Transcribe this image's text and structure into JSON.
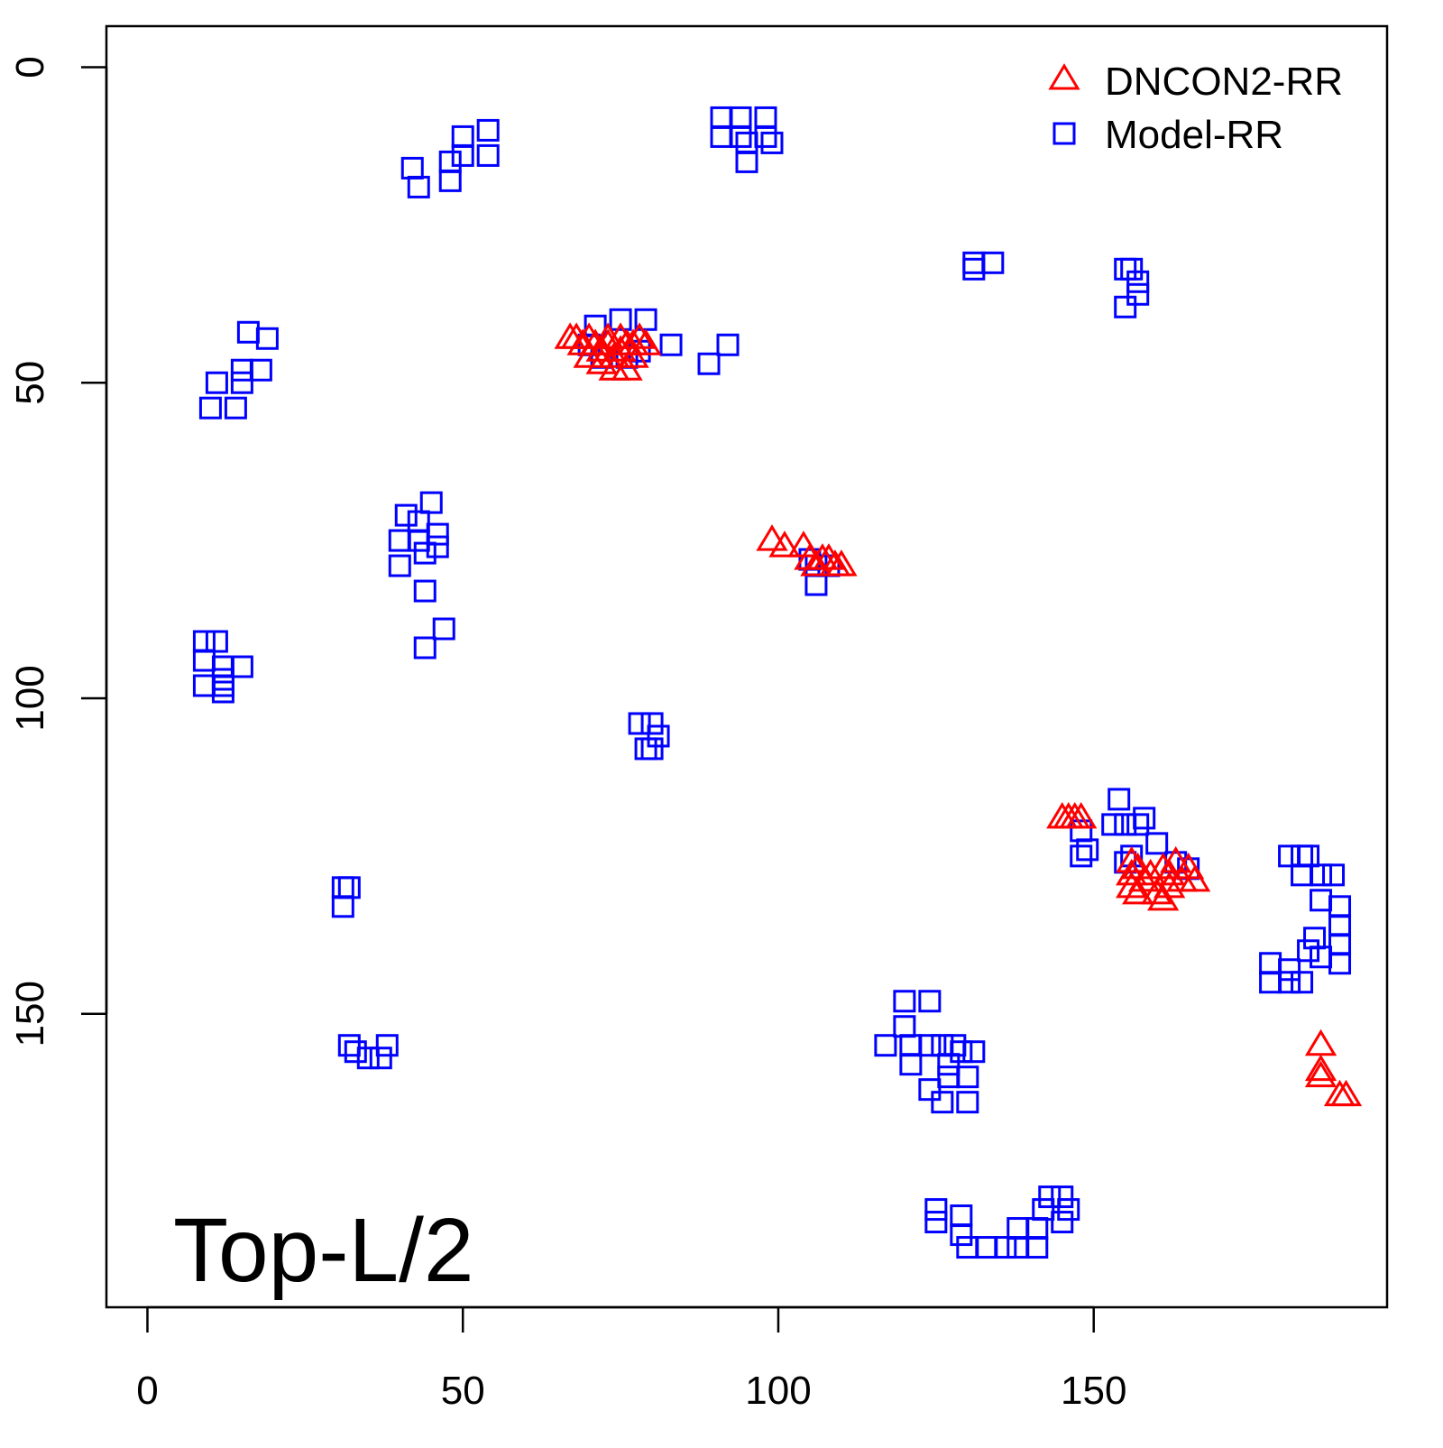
{
  "chart_data": {
    "type": "scatter",
    "title": "",
    "annotation": "Top-L/2",
    "xlabel": "",
    "ylabel": "",
    "xlim": [
      -6.5,
      196.5
    ],
    "ylim": [
      -6.5,
      196.5
    ],
    "y_inverted": true,
    "x_ticks": [
      "0",
      "50",
      "100",
      "150"
    ],
    "y_ticks": [
      "0",
      "50",
      "100",
      "150"
    ],
    "grid": false,
    "legend_position": "top-right",
    "colors": {
      "dncon": "#ff0000",
      "model": "#0000ff"
    },
    "series": [
      {
        "name": "DNCON2-RR",
        "marker": "triangle",
        "points": [
          [
            67,
            43
          ],
          [
            68,
            43
          ],
          [
            69,
            44
          ],
          [
            70,
            43
          ],
          [
            71,
            44
          ],
          [
            72,
            45
          ],
          [
            73,
            44
          ],
          [
            74,
            46
          ],
          [
            75,
            43
          ],
          [
            75,
            45
          ],
          [
            76,
            44
          ],
          [
            77,
            46
          ],
          [
            78,
            43
          ],
          [
            79,
            44
          ],
          [
            70,
            46
          ],
          [
            72,
            47
          ],
          [
            74,
            48
          ],
          [
            76,
            48
          ],
          [
            73,
            43
          ],
          [
            77,
            44
          ],
          [
            99,
            75
          ],
          [
            101,
            76
          ],
          [
            104,
            76
          ],
          [
            105,
            78
          ],
          [
            106,
            79
          ],
          [
            107,
            78
          ],
          [
            108,
            78
          ],
          [
            109,
            79
          ],
          [
            110,
            79
          ],
          [
            145,
            119
          ],
          [
            146,
            119
          ],
          [
            147,
            119
          ],
          [
            148,
            119
          ],
          [
            156,
            126
          ],
          [
            156,
            128
          ],
          [
            156,
            130
          ],
          [
            157,
            127
          ],
          [
            158,
            129
          ],
          [
            159,
            128
          ],
          [
            160,
            131
          ],
          [
            161,
            127
          ],
          [
            162,
            128
          ],
          [
            162,
            130
          ],
          [
            163,
            126
          ],
          [
            164,
            129
          ],
          [
            165,
            127
          ],
          [
            166,
            129
          ],
          [
            161,
            132
          ],
          [
            157,
            131
          ],
          [
            186,
            155
          ],
          [
            186,
            159
          ],
          [
            186,
            160
          ],
          [
            189,
            163
          ],
          [
            190,
            163
          ]
        ]
      },
      {
        "name": "Model-RR",
        "marker": "square",
        "points": [
          [
            42,
            16
          ],
          [
            43,
            19
          ],
          [
            48,
            15
          ],
          [
            48,
            18
          ],
          [
            50,
            11
          ],
          [
            50,
            14
          ],
          [
            54,
            10
          ],
          [
            54,
            14
          ],
          [
            91,
            8
          ],
          [
            91,
            11
          ],
          [
            94,
            8
          ],
          [
            94,
            11
          ],
          [
            95,
            12
          ],
          [
            95,
            15
          ],
          [
            98,
            8
          ],
          [
            98,
            11
          ],
          [
            99,
            12
          ],
          [
            131,
            31
          ],
          [
            131,
            32
          ],
          [
            134,
            31
          ],
          [
            155,
            32
          ],
          [
            156,
            32
          ],
          [
            157,
            34
          ],
          [
            157,
            36
          ],
          [
            155,
            38
          ],
          [
            16,
            42
          ],
          [
            19,
            43
          ],
          [
            15,
            48
          ],
          [
            18,
            48
          ],
          [
            15,
            50
          ],
          [
            11,
            50
          ],
          [
            10,
            54
          ],
          [
            14,
            54
          ],
          [
            71,
            41
          ],
          [
            75,
            40
          ],
          [
            79,
            40
          ],
          [
            83,
            44
          ],
          [
            89,
            47
          ],
          [
            92,
            44
          ],
          [
            70,
            44
          ],
          [
            72,
            46
          ],
          [
            76,
            46
          ],
          [
            78,
            45
          ],
          [
            41,
            71
          ],
          [
            45,
            69
          ],
          [
            40,
            75
          ],
          [
            40,
            79
          ],
          [
            43,
            72
          ],
          [
            43,
            75
          ],
          [
            44,
            77
          ],
          [
            46,
            74
          ],
          [
            46,
            76
          ],
          [
            44,
            83
          ],
          [
            44,
            92
          ],
          [
            47,
            89
          ],
          [
            9,
            91
          ],
          [
            11,
            91
          ],
          [
            9,
            94
          ],
          [
            12,
            95
          ],
          [
            15,
            95
          ],
          [
            12,
            97
          ],
          [
            9,
            98
          ],
          [
            12,
            98
          ],
          [
            12,
            99
          ],
          [
            78,
            104
          ],
          [
            80,
            104
          ],
          [
            81,
            106
          ],
          [
            79,
            108
          ],
          [
            80,
            108
          ],
          [
            105,
            78
          ],
          [
            106,
            79
          ],
          [
            108,
            79
          ],
          [
            106,
            82
          ],
          [
            31,
            130
          ],
          [
            32,
            130
          ],
          [
            31,
            133
          ],
          [
            32,
            155
          ],
          [
            33,
            156
          ],
          [
            35,
            157
          ],
          [
            37,
            157
          ],
          [
            38,
            155
          ],
          [
            154,
            116
          ],
          [
            153,
            120
          ],
          [
            155,
            120
          ],
          [
            157,
            120
          ],
          [
            158,
            119
          ],
          [
            148,
            121
          ],
          [
            149,
            124
          ],
          [
            148,
            125
          ],
          [
            160,
            123
          ],
          [
            156,
            125
          ],
          [
            163,
            126
          ],
          [
            165,
            127
          ],
          [
            155,
            126
          ],
          [
            181,
            125
          ],
          [
            183,
            125
          ],
          [
            184,
            125
          ],
          [
            183,
            128
          ],
          [
            186,
            128
          ],
          [
            188,
            128
          ],
          [
            186,
            132
          ],
          [
            189,
            133
          ],
          [
            189,
            136
          ],
          [
            189,
            139
          ],
          [
            189,
            142
          ],
          [
            185,
            138
          ],
          [
            178,
            142
          ],
          [
            178,
            145
          ],
          [
            181,
            145
          ],
          [
            183,
            145
          ],
          [
            184,
            140
          ],
          [
            186,
            141
          ],
          [
            181,
            143
          ],
          [
            117,
            155
          ],
          [
            120,
            148
          ],
          [
            124,
            148
          ],
          [
            120,
            152
          ],
          [
            121,
            155
          ],
          [
            121,
            158
          ],
          [
            124,
            155
          ],
          [
            126,
            155
          ],
          [
            127,
            158
          ],
          [
            128,
            155
          ],
          [
            129,
            156
          ],
          [
            131,
            156
          ],
          [
            124,
            162
          ],
          [
            126,
            164
          ],
          [
            130,
            160
          ],
          [
            130,
            164
          ],
          [
            127,
            160
          ],
          [
            125,
            181
          ],
          [
            125,
            183
          ],
          [
            129,
            182
          ],
          [
            129,
            185
          ],
          [
            130,
            187
          ],
          [
            133,
            187
          ],
          [
            136,
            187
          ],
          [
            138,
            184
          ],
          [
            138,
            187
          ],
          [
            141,
            184
          ],
          [
            141,
            187
          ],
          [
            142,
            181
          ],
          [
            143,
            179
          ],
          [
            145,
            179
          ],
          [
            146,
            181
          ],
          [
            145,
            183
          ]
        ]
      }
    ]
  }
}
